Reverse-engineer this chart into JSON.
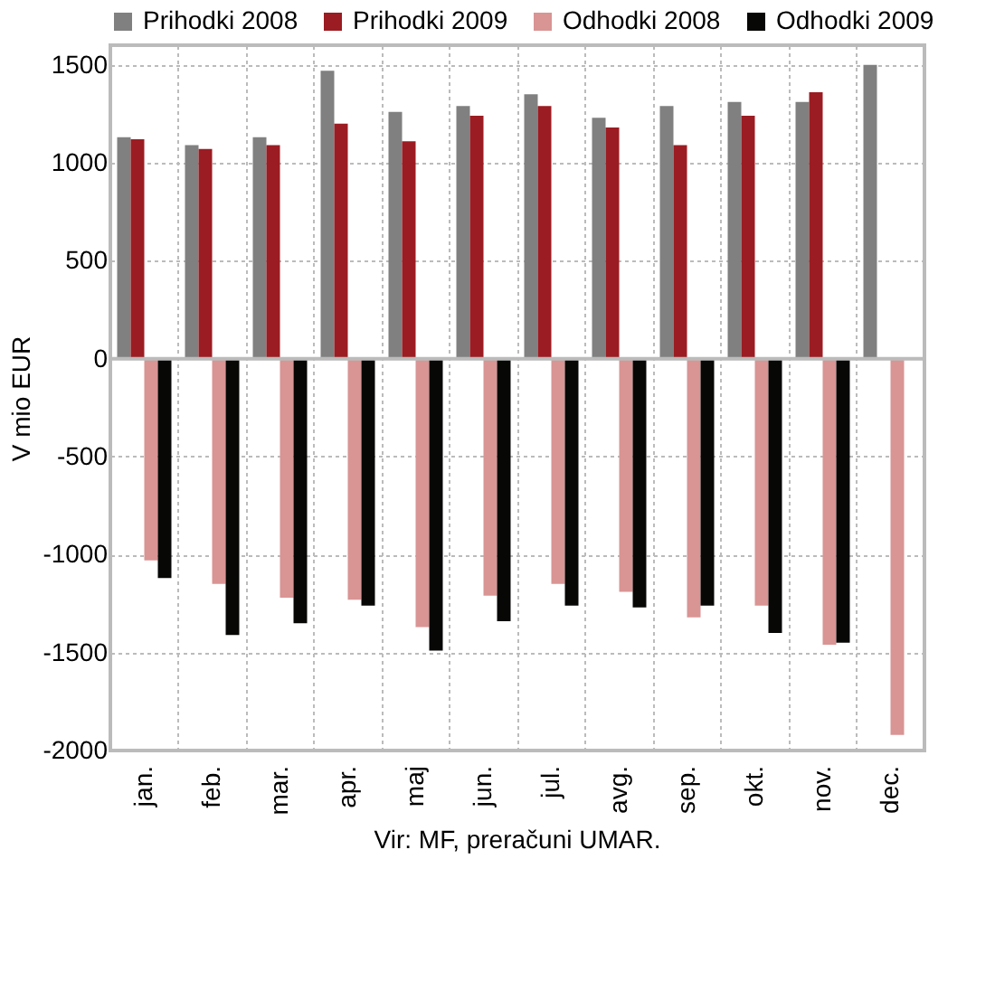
{
  "chart_data": {
    "type": "bar",
    "ylabel": "V mio EUR",
    "categories": [
      "jan.",
      "feb.",
      "mar.",
      "apr.",
      "maj",
      "jun.",
      "jul.",
      "avg.",
      "sep.",
      "okt.",
      "nov.",
      "dec."
    ],
    "series": [
      {
        "name": "Prihodki 2008",
        "color": "#808080",
        "values": [
          1130,
          1090,
          1130,
          1470,
          1260,
          1290,
          1350,
          1230,
          1290,
          1310,
          1310,
          1500
        ]
      },
      {
        "name": "Prihodki 2009",
        "color": "#9b1c22",
        "values": [
          1120,
          1070,
          1090,
          1200,
          1110,
          1240,
          1290,
          1180,
          1090,
          1240,
          1360,
          null
        ]
      },
      {
        "name": "Odhodki 2008",
        "color": "#d99494",
        "values": [
          -1030,
          -1150,
          -1220,
          -1230,
          -1370,
          -1210,
          -1150,
          -1190,
          -1320,
          -1260,
          -1460,
          -1920
        ]
      },
      {
        "name": "Odhodki 2009",
        "color": "#070806",
        "values": [
          -1120,
          -1410,
          -1350,
          -1260,
          -1490,
          -1340,
          -1260,
          -1270,
          -1260,
          -1400,
          -1450,
          null
        ]
      }
    ],
    "ylim": [
      -2000,
      1600
    ],
    "yticks": [
      -2000,
      -1500,
      -1000,
      -500,
      0,
      500,
      1000,
      1500
    ],
    "grid": true,
    "legend": "top",
    "annotations": [
      "Vir: MF, preračuni UMAR."
    ]
  }
}
